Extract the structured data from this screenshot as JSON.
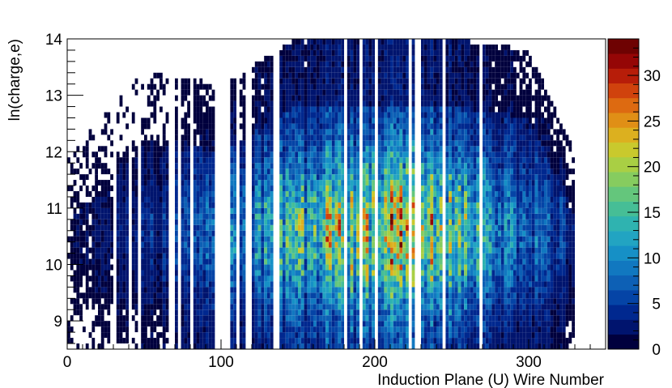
{
  "chart_data": {
    "type": "heatmap",
    "title": "",
    "xlabel": "Induction Plane (U) Wire Number",
    "ylabel": "ln(charge,e)",
    "xlim": [
      0,
      350
    ],
    "ylim": [
      8.5,
      14
    ],
    "zlim": [
      0,
      34
    ],
    "x_ticks": [
      "0",
      "100",
      "200",
      "300"
    ],
    "y_ticks": [
      "9",
      "10",
      "11",
      "12",
      "13",
      "14"
    ],
    "z_ticks": [
      "0",
      "5",
      "10",
      "15",
      "20",
      "25",
      "30"
    ],
    "x_bin_width": 2,
    "y_bin_width": 0.1,
    "colormap": [
      "#00003d",
      "#00146e",
      "#00288f",
      "#0544a6",
      "#0d60b5",
      "#1178c0",
      "#1690c6",
      "#22a4c2",
      "#2fb3b0",
      "#46be96",
      "#64c67c",
      "#86cc5f",
      "#a9cf44",
      "#c9c92d",
      "#dcb01f",
      "#e08f16",
      "#dd6a11",
      "#d0420d",
      "#b71d09",
      "#950606",
      "#6e0202"
    ],
    "density_profile": {
      "wire_intensity": [
        [
          0,
          1
        ],
        [
          30,
          2
        ],
        [
          60,
          4
        ],
        [
          100,
          7
        ],
        [
          140,
          12
        ],
        [
          170,
          17
        ],
        [
          200,
          20
        ],
        [
          230,
          19
        ],
        [
          260,
          14
        ],
        [
          290,
          9
        ],
        [
          320,
          5
        ],
        [
          330,
          2
        ]
      ],
      "peak_ln_charge": 10.6,
      "spread_ln_charge": 0.9,
      "ln_charge_cutoff": [
        [
          0,
          11.9
        ],
        [
          50,
          13.4
        ],
        [
          100,
          13.2
        ],
        [
          150,
          14
        ],
        [
          250,
          14
        ],
        [
          300,
          13.8
        ],
        [
          330,
          12.0
        ]
      ]
    },
    "empty_wire_bins": [
      31,
      41,
      47,
      66,
      69,
      72,
      81,
      97,
      98,
      99,
      100,
      101,
      102,
      103,
      104,
      110,
      117,
      118,
      135,
      136,
      180,
      191,
      201,
      223,
      227,
      228,
      245,
      268,
      269
    ]
  }
}
